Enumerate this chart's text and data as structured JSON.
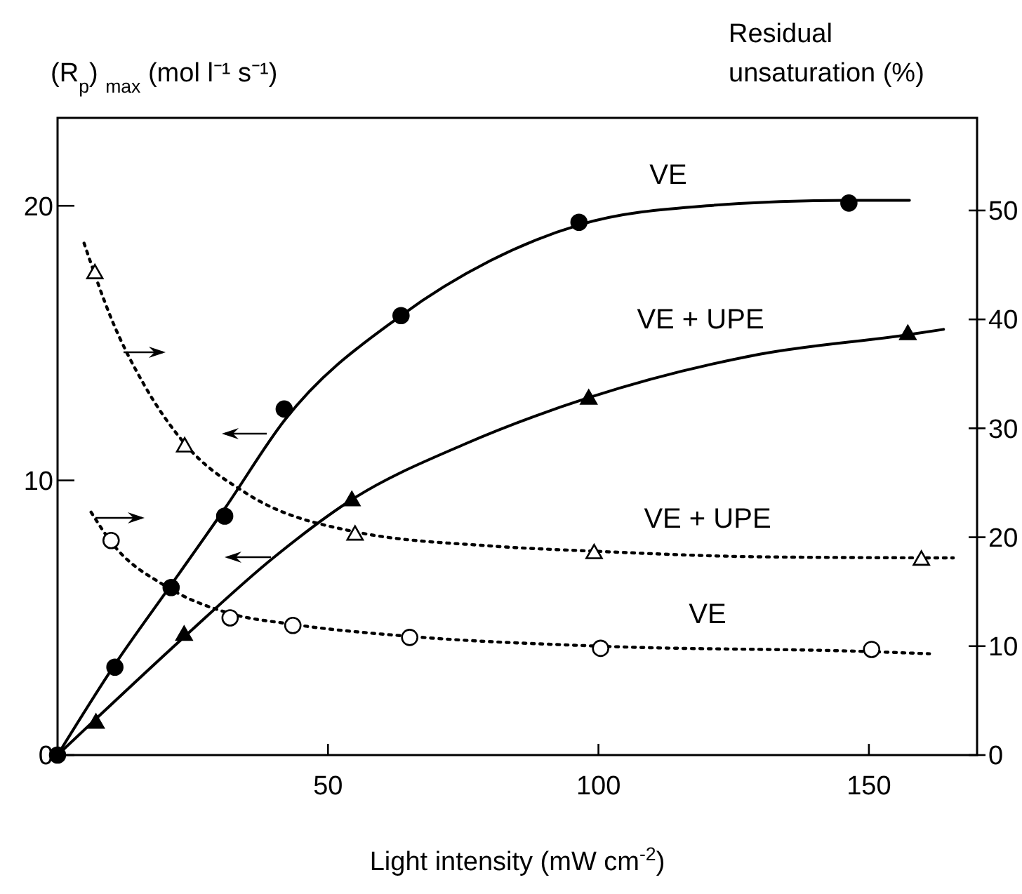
{
  "chart_data": {
    "type": "line",
    "ylabel": "(R$_{p}$) $_{max}$   (mol l⁻¹ s⁻¹)",
    "y2label": "Residual unsaturation (%)",
    "xlabel": "Light intensity (mW cm$^{-2}$)",
    "xlim": [
      0,
      170
    ],
    "xticks": [
      50,
      100,
      150
    ],
    "ylim": [
      0,
      23.2
    ],
    "yticks": [
      0,
      10,
      20
    ],
    "y2lim": [
      0,
      58.5
    ],
    "y2ticks": [
      0,
      10,
      20,
      30,
      40,
      50
    ],
    "grid": false,
    "series": [
      {
        "color": "#000000",
        "marker": "none",
        "line_style": "solid",
        "x": [
          0,
          10.6,
          21,
          31,
          42,
          63.5,
          80,
          96.4,
          120,
          146,
          157.5
        ],
        "values": [
          0,
          3.3,
          6.2,
          9.0,
          12.2,
          16.0,
          18.0,
          19.3,
          20.0,
          20.2,
          20.2
        ]
      },
      {
        "color": "#000000",
        "marker": "none",
        "line_style": "solid",
        "x": [
          0,
          7,
          23.4,
          40,
          54.4,
          75,
          98,
          130,
          157,
          163.8
        ],
        "values": [
          0,
          1.3,
          4.3,
          7.2,
          9.3,
          11.3,
          13.0,
          14.6,
          15.3,
          15.5
        ]
      },
      {
        "axis": "y2",
        "color": "#000000",
        "marker": "none",
        "line_style": "dotted",
        "x": [
          4.9,
          10,
          16,
          23.5,
          35,
          55,
          80,
          100,
          130,
          165.6
        ],
        "values": [
          47,
          40,
          34,
          28.6,
          24,
          20.5,
          19.2,
          18.7,
          18.2,
          18.1
        ]
      },
      {
        "axis": "y2",
        "color": "#000000",
        "marker": "none",
        "line_style": "dotted",
        "x": [
          6.2,
          10,
          20,
          31.9,
          43.5,
          65,
          100,
          150,
          161.2
        ],
        "values": [
          22.3,
          19.5,
          15.5,
          13.0,
          12.0,
          10.9,
          10.0,
          9.5,
          9.3
        ]
      },
      {
        "type": "scatter",
        "color": "#000000",
        "marker": "circle",
        "x": [
          0,
          10.6,
          21.0,
          30.9,
          41.9,
          63.5,
          96.4,
          146.3
        ],
        "values": [
          0,
          3.2,
          6.1,
          8.7,
          12.6,
          16.0,
          19.4,
          20.1
        ]
      },
      {
        "type": "scatter",
        "color": "#000000",
        "marker": "triangle",
        "x": [
          7.1,
          23.4,
          54.4,
          98.2,
          157.2
        ],
        "values": [
          1.2,
          4.4,
          9.3,
          13.0,
          15.35
        ]
      },
      {
        "type": "scatter",
        "axis": "y2",
        "color": "#000000",
        "marker": "triangle",
        "x": [
          6.9,
          23.5,
          55.0,
          99.2,
          159.7
        ],
        "values": [
          44.3,
          28.4,
          20.3,
          18.6,
          18.0
        ]
      },
      {
        "type": "scatter",
        "axis": "y2",
        "color": "#000000",
        "marker": "circle",
        "x": [
          9.9,
          31.9,
          43.5,
          65.1,
          100.4,
          150.5
        ],
        "values": [
          19.7,
          12.6,
          11.9,
          10.8,
          9.8,
          9.7
        ]
      }
    ],
    "annotations": [
      "VE",
      "VE + UPE",
      "VE + UPE",
      "VE"
    ]
  }
}
